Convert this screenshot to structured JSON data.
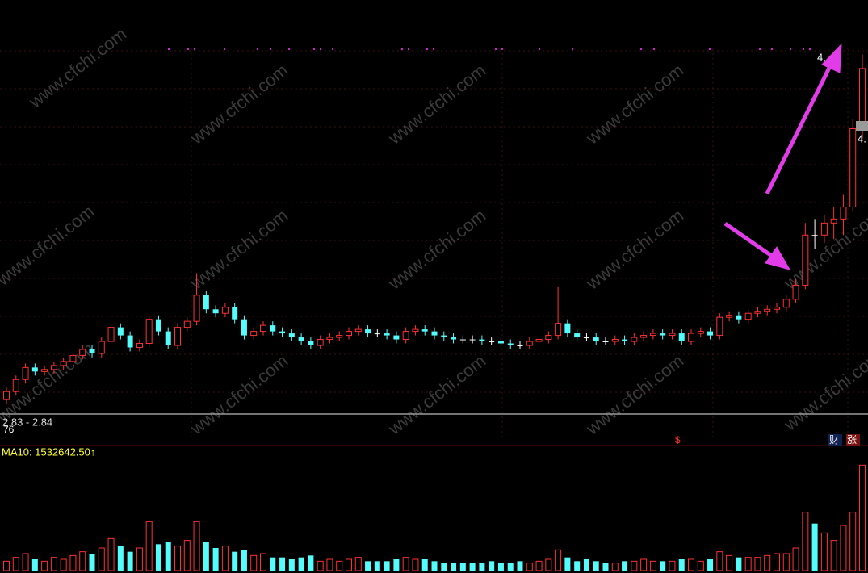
{
  "chart_data": {
    "type": "candlestick",
    "header": "2.83 - 2.84",
    "corner_label": "76",
    "ma10_label": "MA10: 1532642.50↑",
    "price_label_top": "4.",
    "price_label_mid": "4.",
    "event_mark": "$",
    "tag_finance": "财",
    "tag_limit": "涨",
    "watermark": "www.cfchi.com",
    "colors": {
      "up": "#ff3232",
      "down": "#54fcfc",
      "flat": "#ffffff"
    },
    "ylim": [
      2.6,
      4.45
    ],
    "vlim": [
      0,
      6000000
    ],
    "open": [
      2.7,
      2.74,
      2.8,
      2.86,
      2.84,
      2.85,
      2.87,
      2.89,
      2.92,
      2.95,
      2.93,
      2.99,
      3.06,
      3.02,
      2.96,
      2.98,
      3.1,
      3.04,
      2.97,
      3.06,
      3.09,
      3.22,
      3.15,
      3.13,
      3.16,
      3.1,
      3.02,
      3.04,
      3.07,
      3.04,
      3.03,
      3.01,
      2.99,
      2.97,
      3.0,
      3.01,
      3.02,
      3.04,
      3.05,
      3.03,
      3.03,
      3.02,
      3.0,
      3.04,
      3.05,
      3.04,
      3.02,
      3.01,
      3.0,
      3.0,
      3.0,
      2.99,
      2.99,
      2.98,
      2.97,
      2.97,
      2.99,
      3.0,
      3.02,
      3.08,
      3.03,
      3.01,
      3.01,
      2.99,
      2.99,
      3.0,
      2.99,
      3.01,
      3.02,
      3.03,
      3.02,
      3.03,
      2.99,
      3.03,
      3.04,
      3.02,
      3.11,
      3.12,
      3.1,
      3.13,
      3.14,
      3.15,
      3.16,
      3.2,
      3.27,
      3.52,
      3.52,
      3.58,
      3.6,
      3.66,
      4.05
    ],
    "high": [
      2.76,
      2.82,
      2.88,
      2.88,
      2.87,
      2.89,
      2.91,
      2.94,
      2.97,
      2.97,
      3.01,
      3.08,
      3.08,
      3.04,
      3.0,
      3.12,
      3.12,
      3.06,
      3.08,
      3.11,
      3.33,
      3.24,
      3.17,
      3.18,
      3.18,
      3.12,
      3.06,
      3.09,
      3.09,
      3.06,
      3.05,
      3.03,
      3.01,
      3.02,
      3.03,
      3.04,
      3.06,
      3.07,
      3.07,
      3.05,
      3.05,
      3.04,
      3.06,
      3.07,
      3.07,
      3.06,
      3.04,
      3.03,
      3.02,
      3.02,
      3.02,
      3.01,
      3.01,
      3.0,
      2.99,
      3.01,
      3.02,
      3.04,
      3.26,
      3.1,
      3.05,
      3.03,
      3.03,
      3.01,
      3.02,
      3.02,
      3.03,
      3.04,
      3.05,
      3.05,
      3.05,
      3.05,
      3.05,
      3.06,
      3.06,
      3.13,
      3.14,
      3.14,
      3.15,
      3.16,
      3.17,
      3.18,
      3.22,
      3.3,
      3.58,
      3.6,
      3.62,
      3.66,
      3.72,
      4.1,
      4.42
    ],
    "low": [
      2.68,
      2.72,
      2.78,
      2.82,
      2.82,
      2.83,
      2.85,
      2.87,
      2.9,
      2.91,
      2.91,
      2.97,
      3.0,
      2.94,
      2.94,
      2.96,
      3.02,
      2.95,
      2.95,
      3.04,
      3.07,
      3.13,
      3.11,
      3.11,
      3.08,
      3.0,
      3.0,
      3.02,
      3.02,
      3.01,
      2.99,
      2.97,
      2.95,
      2.95,
      2.98,
      2.99,
      3.0,
      3.02,
      3.01,
      3.01,
      3.0,
      2.98,
      2.98,
      3.02,
      3.02,
      3.0,
      2.99,
      2.98,
      2.98,
      2.98,
      2.97,
      2.97,
      2.96,
      2.95,
      2.95,
      2.95,
      2.97,
      2.98,
      3.0,
      3.01,
      2.99,
      2.99,
      2.97,
      2.97,
      2.97,
      2.97,
      2.97,
      2.99,
      3.0,
      3.0,
      3.0,
      2.97,
      2.97,
      3.01,
      3.0,
      3.0,
      3.09,
      3.08,
      3.08,
      3.11,
      3.12,
      3.13,
      3.14,
      3.18,
      3.25,
      3.45,
      3.48,
      3.5,
      3.52,
      3.64,
      4.0
    ],
    "close": [
      2.74,
      2.8,
      2.86,
      2.84,
      2.85,
      2.87,
      2.89,
      2.92,
      2.95,
      2.93,
      2.99,
      3.06,
      3.02,
      2.96,
      2.98,
      3.1,
      3.04,
      2.97,
      3.06,
      3.09,
      3.22,
      3.15,
      3.13,
      3.16,
      3.1,
      3.02,
      3.04,
      3.07,
      3.04,
      3.03,
      3.01,
      2.99,
      2.97,
      3.0,
      3.01,
      3.02,
      3.04,
      3.05,
      3.03,
      3.03,
      3.02,
      3.0,
      3.04,
      3.05,
      3.04,
      3.02,
      3.01,
      3.0,
      3.0,
      3.0,
      2.99,
      2.99,
      2.98,
      2.97,
      2.97,
      2.99,
      3.0,
      3.02,
      3.08,
      3.03,
      3.01,
      3.01,
      2.99,
      2.99,
      3.0,
      2.99,
      3.01,
      3.02,
      3.03,
      3.02,
      3.03,
      2.99,
      3.03,
      3.04,
      3.02,
      3.11,
      3.12,
      3.1,
      3.13,
      3.14,
      3.15,
      3.16,
      3.2,
      3.27,
      3.52,
      3.52,
      3.58,
      3.6,
      3.66,
      4.05,
      4.35
    ],
    "volume": [
      500000,
      700000,
      900000,
      600000,
      500000,
      700000,
      600000,
      800000,
      1000000,
      900000,
      1200000,
      1700000,
      1300000,
      1000000,
      1200000,
      2600000,
      1400000,
      1500000,
      1300000,
      1600000,
      2600000,
      1500000,
      1200000,
      1300000,
      1000000,
      1100000,
      800000,
      900000,
      700000,
      700000,
      600000,
      700000,
      800000,
      500000,
      600000,
      500000,
      600000,
      700000,
      500000,
      500000,
      500000,
      600000,
      700000,
      600000,
      600000,
      500000,
      400000,
      400000,
      400000,
      400000,
      400000,
      500000,
      400000,
      400000,
      500000,
      400000,
      500000,
      600000,
      1100000,
      700000,
      500000,
      600000,
      500000,
      400000,
      400000,
      500000,
      500000,
      600000,
      500000,
      500000,
      500000,
      600000,
      600000,
      500000,
      600000,
      1000000,
      800000,
      700000,
      700000,
      700000,
      800000,
      900000,
      900000,
      1200000,
      3100000,
      2500000,
      2000000,
      1600000,
      2400000,
      3100000,
      5600000
    ]
  }
}
